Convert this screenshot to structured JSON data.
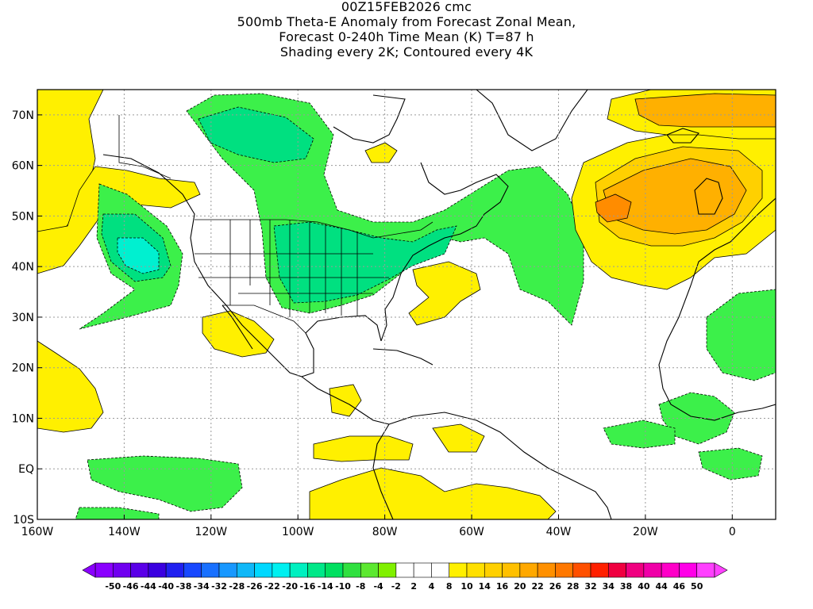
{
  "title": {
    "line1": "00Z15FEB2026 cmc",
    "line2": "500mb Theta-E Anomaly from Forecast Zonal Mean,",
    "line3": "Forecast 0-240h Time Mean (K) T=87 h",
    "line4": "Shading every 2K; Contoured every 4K"
  },
  "map": {
    "lon_range": [
      -160,
      10
    ],
    "lat_range": [
      -10,
      75
    ],
    "lon_ticks": [
      "160W",
      "140W",
      "120W",
      "100W",
      "80W",
      "60W",
      "40W",
      "20W",
      "0"
    ],
    "lat_ticks": [
      "10S",
      "EQ",
      "10N",
      "20N",
      "30N",
      "40N",
      "50N",
      "60N",
      "70N"
    ],
    "gridlines": true,
    "colors": {
      "green_strong": "#00e080",
      "green": "#3cf04a",
      "green_light": "#66f000",
      "cyan": "#00f0d0",
      "yellow": "#fff000",
      "yellow_dark": "#ffd000",
      "orange_light": "#ffb000",
      "orange": "#ff8c00"
    }
  },
  "colorbar": {
    "labels": [
      "-50",
      "-46",
      "-44",
      "-40",
      "-38",
      "-34",
      "-32",
      "-28",
      "-26",
      "-22",
      "-20",
      "-16",
      "-14",
      "-10",
      "-8",
      "-4",
      "-2",
      "2",
      "4",
      "8",
      "10",
      "14",
      "16",
      "20",
      "22",
      "26",
      "28",
      "32",
      "34",
      "38",
      "40",
      "44",
      "46",
      "50"
    ],
    "colors": [
      "#8a00ff",
      "#7000f0",
      "#5a00e8",
      "#3a00e0",
      "#2020f0",
      "#1848ff",
      "#1870ff",
      "#1898ff",
      "#10b8f8",
      "#00d8ff",
      "#00f0f0",
      "#00f0c0",
      "#00e888",
      "#00e060",
      "#30e040",
      "#5ce830",
      "#80f000",
      "#ffffff",
      "#ffffff",
      "#ffffff",
      "#fff000",
      "#ffe000",
      "#ffd000",
      "#ffc000",
      "#ffa800",
      "#ff9000",
      "#ff7800",
      "#ff5000",
      "#ff2000",
      "#f00040",
      "#f00080",
      "#f000a8",
      "#ff00c8",
      "#ff00e8",
      "#ff40ff"
    ]
  }
}
